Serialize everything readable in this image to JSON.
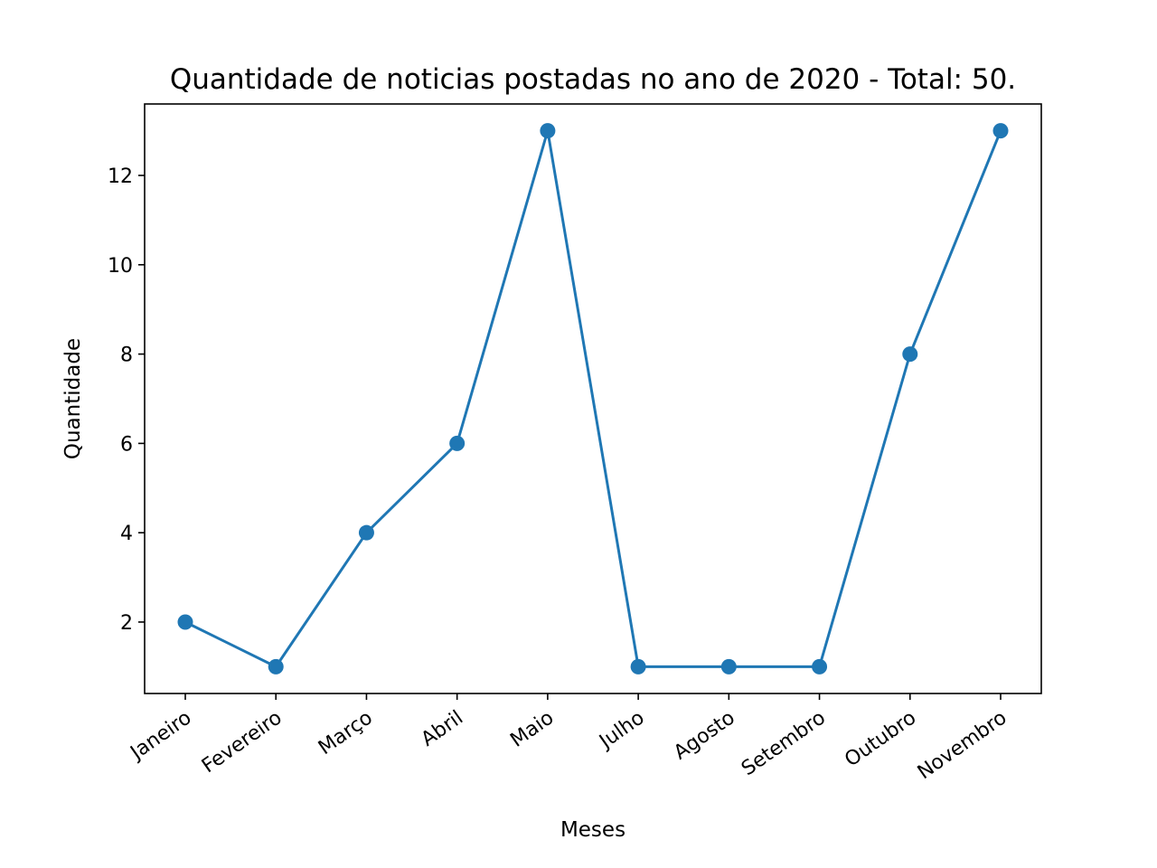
{
  "chart_data": {
    "type": "line",
    "title": "Quantidade de noticias postadas no ano de 2020 - Total: 50.",
    "xlabel": "Meses",
    "ylabel": "Quantidade",
    "categories": [
      "Janeiro",
      "Fevereiro",
      "Março",
      "Abril",
      "Maio",
      "Julho",
      "Agosto",
      "Setembro",
      "Outubro",
      "Novembro"
    ],
    "series": [
      {
        "values": [
          2,
          1,
          4,
          6,
          13,
          1,
          1,
          1,
          8,
          13
        ],
        "color": "#1f77b4",
        "marker": "circle"
      }
    ],
    "ylim": [
      0.4,
      13.6
    ],
    "yticks": [
      2,
      4,
      6,
      8,
      10,
      12
    ],
    "xtick_rotation_deg": 35,
    "grid": false,
    "legend": false
  }
}
